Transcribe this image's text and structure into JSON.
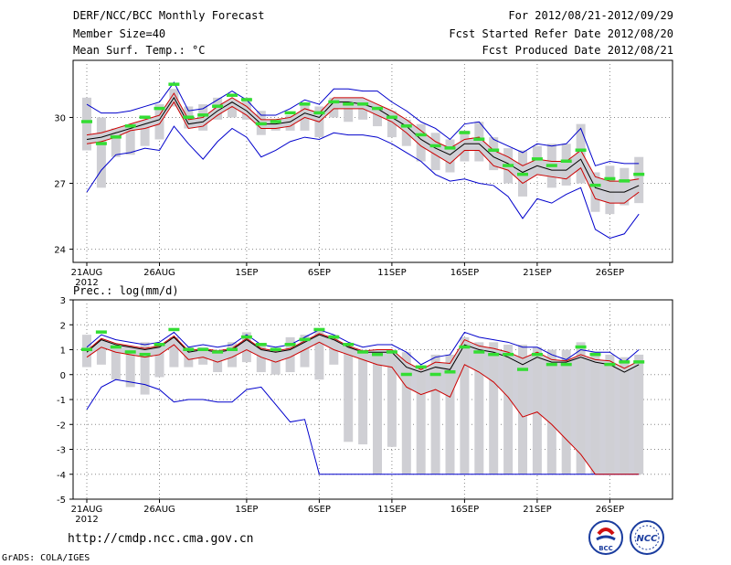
{
  "header": {
    "title": "DERF/NCC/BCC Monthly Forecast",
    "member_size": "Member Size=40",
    "variable": "Mean Surf. Temp.: °C",
    "period": "For 2012/08/21-2012/09/29",
    "start_date": "Fcst Started Refer Date 2012/08/20",
    "produced_date": "Fcst Produced Date 2012/08/21"
  },
  "footer": {
    "url": "http://cmdp.ncc.cma.gov.cn",
    "credit": "GrADS: COLA/IGES",
    "logo_left": "BCC",
    "logo_right": "NCC"
  },
  "colors": {
    "envelope": "#0000cc",
    "spread": "#cc0000",
    "mean": "#000000",
    "marker": "#33dd33",
    "box": "#cfcfd4",
    "band": "#d0d0d8"
  },
  "chart_data": [
    {
      "type": "line",
      "title": "Mean Surf. Temp.: °C",
      "ylim": [
        23.4,
        32.6
      ],
      "yticks": [
        "24",
        "27",
        "30"
      ],
      "ytick_values": [
        24,
        27,
        30
      ],
      "xticks": [
        "21AUG",
        "26AUG",
        "1SEP",
        "6SEP",
        "11SEP",
        "16SEP",
        "21SEP",
        "26SEP"
      ],
      "xtick_days": [
        0,
        5,
        11,
        16,
        21,
        26,
        31,
        36
      ],
      "x_year": "2012",
      "series": [
        {
          "name": "max",
          "color": "blue",
          "values": [
            30.6,
            30.2,
            30.2,
            30.3,
            30.5,
            30.7,
            31.6,
            30.3,
            30.4,
            30.8,
            31.2,
            30.8,
            30.1,
            30.1,
            30.4,
            30.8,
            30.6,
            31.3,
            31.3,
            31.2,
            31.2,
            30.7,
            30.3,
            29.8,
            29.5,
            29.0,
            29.7,
            29.8,
            29.0,
            28.7,
            28.4,
            28.8,
            28.7,
            28.8,
            29.5,
            27.8,
            28.0,
            27.9,
            27.9
          ]
        },
        {
          "name": "p_upper",
          "color": "red",
          "values": [
            29.2,
            29.3,
            29.5,
            29.7,
            29.9,
            30.1,
            31.1,
            29.9,
            30.0,
            30.5,
            30.9,
            30.5,
            29.9,
            29.9,
            30.0,
            30.4,
            30.2,
            30.9,
            30.9,
            30.9,
            30.6,
            30.3,
            29.9,
            29.4,
            28.9,
            28.6,
            29.0,
            29.1,
            28.5,
            28.2,
            27.8,
            28.1,
            28.0,
            28.0,
            28.5,
            27.3,
            27.1,
            27.1,
            27.2
          ]
        },
        {
          "name": "mean",
          "color": "black",
          "values": [
            29.0,
            29.1,
            29.3,
            29.5,
            29.7,
            29.9,
            30.9,
            29.7,
            29.8,
            30.3,
            30.7,
            30.3,
            29.7,
            29.7,
            29.8,
            30.2,
            30.0,
            30.7,
            30.7,
            30.6,
            30.4,
            30.0,
            29.6,
            29.0,
            28.6,
            28.3,
            28.8,
            28.8,
            28.2,
            27.9,
            27.5,
            27.8,
            27.6,
            27.6,
            28.1,
            26.8,
            26.6,
            26.6,
            26.9
          ]
        },
        {
          "name": "p_lower",
          "color": "red",
          "values": [
            28.8,
            28.9,
            29.1,
            29.4,
            29.5,
            29.7,
            30.7,
            29.5,
            29.6,
            30.1,
            30.5,
            30.1,
            29.5,
            29.5,
            29.6,
            30.0,
            29.8,
            30.4,
            30.4,
            30.4,
            30.1,
            29.8,
            29.3,
            28.7,
            28.3,
            27.9,
            28.5,
            28.5,
            27.8,
            27.6,
            27.0,
            27.4,
            27.3,
            27.2,
            27.7,
            26.3,
            26.1,
            26.1,
            26.6
          ]
        },
        {
          "name": "min",
          "color": "blue",
          "values": [
            26.6,
            27.6,
            28.3,
            28.4,
            28.6,
            28.5,
            29.6,
            28.8,
            28.1,
            28.9,
            29.5,
            29.1,
            28.2,
            28.5,
            28.9,
            29.1,
            29.0,
            29.3,
            29.2,
            29.2,
            29.1,
            28.8,
            28.4,
            28.0,
            27.4,
            27.1,
            27.2,
            27.0,
            26.9,
            26.4,
            25.4,
            26.3,
            26.1,
            26.5,
            26.8,
            24.9,
            24.5,
            24.7,
            25.6
          ]
        },
        {
          "name": "marker",
          "color": "green",
          "values": [
            29.8,
            28.8,
            29.1,
            29.6,
            30.0,
            30.4,
            31.5,
            30.0,
            30.1,
            30.5,
            31.0,
            30.8,
            29.7,
            29.8,
            30.2,
            30.6,
            30.2,
            30.7,
            30.6,
            30.6,
            30.4,
            30.0,
            29.6,
            29.2,
            28.7,
            28.6,
            29.3,
            29.0,
            28.5,
            27.8,
            27.4,
            28.1,
            27.8,
            28.0,
            28.5,
            26.9,
            27.2,
            27.1,
            27.4
          ]
        },
        {
          "name": "box_top",
          "color": "gray",
          "values": [
            30.9,
            30.0,
            29.5,
            29.5,
            29.8,
            30.6,
            31.3,
            30.5,
            30.6,
            30.9,
            30.8,
            30.9,
            30.3,
            29.8,
            30.1,
            30.6,
            30.5,
            30.9,
            30.8,
            30.6,
            30.5,
            30.3,
            29.9,
            29.7,
            29.3,
            29.0,
            29.4,
            29.8,
            29.1,
            28.6,
            28.5,
            28.7,
            28.8,
            28.8,
            29.7,
            27.5,
            27.8,
            27.7,
            28.2
          ]
        },
        {
          "name": "box_bottom",
          "color": "gray",
          "values": [
            28.5,
            26.8,
            28.2,
            28.3,
            28.7,
            29.0,
            30.5,
            29.5,
            29.4,
            29.9,
            30.0,
            29.9,
            29.2,
            29.4,
            29.4,
            29.4,
            29.1,
            30.0,
            29.8,
            29.9,
            29.6,
            29.1,
            28.7,
            28.0,
            27.6,
            27.5,
            28.0,
            28.0,
            27.6,
            27.0,
            26.4,
            27.4,
            26.8,
            26.9,
            27.0,
            25.7,
            25.6,
            26.0,
            26.1
          ]
        }
      ]
    },
    {
      "type": "line",
      "title": "Prec.: log(mm/d)",
      "ylim": [
        -5,
        3
      ],
      "yticks": [
        "-5",
        "-4",
        "-3",
        "-2",
        "-1",
        "0",
        "1",
        "2",
        "3"
      ],
      "ytick_values": [
        -5,
        -4,
        -3,
        -2,
        -1,
        0,
        1,
        2,
        3
      ],
      "xticks": [
        "21AUG",
        "26AUG",
        "1SEP",
        "6SEP",
        "11SEP",
        "16SEP",
        "21SEP",
        "26SEP"
      ],
      "xtick_days": [
        0,
        5,
        11,
        16,
        21,
        26,
        31,
        36
      ],
      "x_year": "2012",
      "series": [
        {
          "name": "max",
          "color": "blue",
          "values": [
            1.1,
            1.6,
            1.4,
            1.3,
            1.2,
            1.3,
            1.7,
            1.1,
            1.2,
            1.1,
            1.2,
            1.6,
            1.2,
            1.1,
            1.2,
            1.5,
            1.8,
            1.6,
            1.3,
            1.1,
            1.2,
            1.2,
            0.9,
            0.4,
            0.7,
            0.8,
            1.7,
            1.5,
            1.4,
            1.3,
            1.1,
            1.1,
            0.8,
            0.6,
            1.0,
            0.9,
            0.9,
            0.5,
            1.0
          ]
        },
        {
          "name": "p_upper",
          "color": "red",
          "values": [
            0.95,
            1.45,
            1.25,
            1.15,
            1.05,
            1.15,
            1.55,
            0.95,
            1.05,
            0.95,
            1.05,
            1.45,
            1.05,
            0.95,
            1.05,
            1.35,
            1.65,
            1.45,
            1.15,
            0.95,
            1.0,
            1.0,
            0.5,
            0.2,
            0.5,
            0.45,
            1.4,
            1.15,
            1.05,
            0.9,
            0.65,
            0.9,
            0.6,
            0.55,
            0.8,
            0.6,
            0.55,
            0.25,
            0.55
          ]
        },
        {
          "name": "mean",
          "color": "black",
          "values": [
            0.9,
            1.4,
            1.2,
            1.1,
            1.0,
            1.1,
            1.5,
            0.9,
            1.0,
            0.9,
            1.0,
            1.4,
            1.0,
            0.9,
            1.0,
            1.3,
            1.6,
            1.4,
            1.1,
            0.9,
            0.9,
            0.9,
            0.3,
            0.1,
            0.3,
            0.2,
            1.2,
            1.0,
            0.9,
            0.7,
            0.4,
            0.7,
            0.5,
            0.5,
            0.7,
            0.5,
            0.4,
            0.1,
            0.4
          ]
        },
        {
          "name": "p_lower",
          "color": "red",
          "values": [
            0.7,
            1.1,
            0.9,
            0.8,
            0.7,
            0.8,
            1.2,
            0.6,
            0.7,
            0.5,
            0.7,
            1.0,
            0.7,
            0.5,
            0.7,
            1.0,
            1.3,
            1.0,
            0.8,
            0.6,
            0.4,
            0.3,
            -0.5,
            -0.8,
            -0.6,
            -0.9,
            0.4,
            0.1,
            -0.3,
            -0.9,
            -1.7,
            -1.5,
            -2.0,
            -2.6,
            -3.2,
            -4.0,
            -4.0,
            -4.0,
            -4.0
          ]
        },
        {
          "name": "min",
          "color": "blue",
          "values": [
            -1.4,
            -0.5,
            -0.2,
            -0.3,
            -0.4,
            -0.6,
            -1.1,
            -1.0,
            -1.0,
            -1.1,
            -1.1,
            -0.6,
            -0.5,
            -1.2,
            -1.9,
            -1.8,
            -4.0,
            -4.0,
            -4.0,
            -4.0,
            -4.0,
            -4.0,
            -4.0,
            -4.0,
            -4.0,
            -4.0,
            -4.0,
            -4.0,
            -4.0,
            -4.0,
            -4.0,
            -4.0,
            -4.0,
            -4.0,
            -4.0,
            -4.0,
            -4.0,
            -4.0,
            -4.0
          ]
        },
        {
          "name": "marker",
          "color": "green",
          "values": [
            1.0,
            1.7,
            1.1,
            0.9,
            0.8,
            1.2,
            1.8,
            1.0,
            1.0,
            0.9,
            1.0,
            1.5,
            1.2,
            1.0,
            1.2,
            1.4,
            1.8,
            1.5,
            1.2,
            0.9,
            0.8,
            0.9,
            0.0,
            0.3,
            0.0,
            0.1,
            1.1,
            0.9,
            0.8,
            0.8,
            0.2,
            0.8,
            0.4,
            0.4,
            1.1,
            0.8,
            0.4,
            0.5,
            0.5
          ]
        },
        {
          "name": "box_top",
          "color": "gray",
          "values": [
            1.6,
            1.3,
            1.1,
            1.0,
            1.3,
            1.2,
            1.5,
            1.1,
            1.1,
            1.0,
            1.3,
            1.7,
            1.2,
            1.0,
            1.5,
            1.6,
            1.8,
            1.6,
            1.1,
            1.0,
            0.9,
            1.0,
            0.9,
            0.3,
            0.8,
            0.8,
            1.5,
            1.3,
            1.3,
            1.2,
            1.2,
            1.1,
            1.0,
            1.0,
            1.3,
            0.9,
            0.8,
            0.7,
            0.8
          ]
        },
        {
          "name": "box_bottom",
          "color": "gray",
          "values": [
            0.3,
            0.4,
            -0.2,
            -0.5,
            -0.8,
            -0.1,
            0.3,
            0.3,
            0.4,
            0.1,
            0.3,
            0.5,
            0.1,
            0.0,
            0.1,
            0.3,
            -0.2,
            0.4,
            -2.7,
            -2.8,
            -4.0,
            -2.9,
            -4.0,
            -4.0,
            -4.0,
            -4.0,
            -4.0,
            -4.0,
            -4.0,
            -4.0,
            -4.0,
            -4.0,
            -4.0,
            -4.0,
            -4.0,
            -4.0,
            -4.0,
            -4.0,
            -4.0
          ]
        }
      ]
    }
  ]
}
